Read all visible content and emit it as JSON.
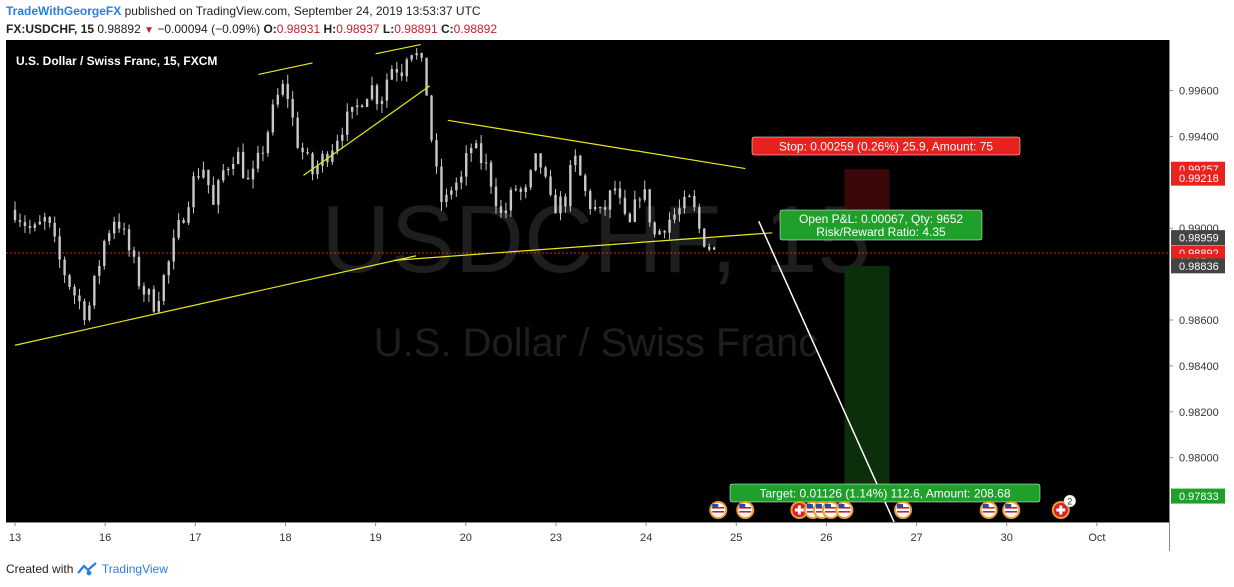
{
  "header": {
    "author": "TradeWithGeorgeFX",
    "published_text": "published on TradingView.com, September 24, 2019 13:53:37 UTC",
    "symbol_interval": "FX:USDCHF, 15",
    "last": "0.98892",
    "change": "−0.00094 (−0.09%)",
    "o_label": "O:",
    "o": "0.98931",
    "h_label": "H:",
    "h": "0.98937",
    "l_label": "L:",
    "l": "0.98891",
    "c_label": "C:",
    "c": "0.98892"
  },
  "footer": {
    "created_with": "Created with",
    "brand": "TradingView"
  },
  "colors": {
    "background": "#000000",
    "candle": "#c8c8c8",
    "trendline": "#e8e81c",
    "stop_zone": "#3a0808",
    "target_zone": "#0b2e0b",
    "stop_label": "#e8221e",
    "pnl_label": "#1ea02a",
    "target_label": "#1ea02a",
    "axis_bg": "#ffffff",
    "axis_text": "#333333",
    "last_price": "#e8221e"
  },
  "chart_data": {
    "type": "candlestick",
    "instrument_label": "U.S. Dollar / Swiss Franc, 15, FXCM",
    "watermark_symbol": "USDCHF, 15",
    "watermark_name": "U.S. Dollar / Swiss Franc",
    "x_ticks": [
      "13",
      "16",
      "17",
      "18",
      "19",
      "20",
      "23",
      "24",
      "25",
      "26",
      "27",
      "30",
      "Oct"
    ],
    "y_ticks": [
      0.996,
      0.994,
      0.99,
      0.986,
      0.984,
      0.982,
      0.98
    ],
    "y_tick_labels": [
      "0.99600",
      "0.99400",
      "0.99000",
      "0.98600",
      "0.98400",
      "0.98200",
      "0.98000"
    ],
    "ylim": [
      0.9772,
      0.9982
    ],
    "x_range_days": [
      -0.1,
      12.8
    ],
    "price_badges": [
      {
        "label": "0.99257",
        "value": 0.99257,
        "kind": "stop"
      },
      {
        "label": "0.99218",
        "value": 0.99218,
        "kind": "stop"
      },
      {
        "label": "0.98959",
        "value": 0.98959,
        "kind": "entry"
      },
      {
        "label": "0.98892",
        "value": 0.98892,
        "kind": "last"
      },
      {
        "label": "06:25",
        "value": 0.98855,
        "kind": "countdown"
      },
      {
        "label": "0.98836",
        "value": 0.98836,
        "kind": "entry"
      },
      {
        "label": "0.97833",
        "value": 0.97833,
        "kind": "target"
      }
    ],
    "last_price": 0.98892,
    "path_day": [
      0,
      0.2,
      0.35,
      0.5,
      0.65,
      0.8,
      1.0,
      1.12,
      1.25,
      1.4,
      1.55,
      1.7,
      1.8,
      2.0,
      2.1,
      2.2,
      2.3,
      2.45,
      2.6,
      2.75,
      2.9,
      3.0,
      3.12,
      3.3,
      3.5,
      3.65,
      3.75,
      3.85,
      3.95,
      4.05,
      4.12,
      4.2,
      4.28,
      4.36,
      4.42,
      4.5,
      4.55,
      4.65,
      4.75,
      4.85,
      4.95,
      5.05,
      5.15,
      5.25,
      5.4,
      5.55,
      5.65,
      5.8,
      5.95,
      6.1,
      6.2,
      6.35,
      6.5,
      6.65,
      6.8,
      6.95,
      7.1,
      7.2,
      7.35,
      7.5,
      7.6,
      7.7,
      7.8
    ],
    "path_price": [
      0.9908,
      0.9898,
      0.9904,
      0.9885,
      0.9872,
      0.9862,
      0.9896,
      0.9906,
      0.9892,
      0.9874,
      0.9867,
      0.9884,
      0.9898,
      0.9923,
      0.9927,
      0.9909,
      0.9924,
      0.9934,
      0.9918,
      0.9935,
      0.9956,
      0.9963,
      0.9939,
      0.9924,
      0.9935,
      0.9946,
      0.9949,
      0.9957,
      0.9962,
      0.9955,
      0.9965,
      0.9972,
      0.9968,
      0.9979,
      0.9978,
      0.9971,
      0.9965,
      0.9928,
      0.9908,
      0.9919,
      0.9921,
      0.9936,
      0.9931,
      0.9925,
      0.9904,
      0.9918,
      0.9913,
      0.9932,
      0.9909,
      0.9912,
      0.9931,
      0.9912,
      0.9905,
      0.9918,
      0.9898,
      0.9919,
      0.9896,
      0.9902,
      0.9907,
      0.9912,
      0.9898,
      0.9892,
      0.9889
    ],
    "trendlines": [
      {
        "d1": 0.0,
        "p1": 0.9849,
        "d2": 4.45,
        "p2": 0.9888
      },
      {
        "d1": 4.2,
        "p1": 0.9886,
        "d2": 8.4,
        "p2": 0.9898
      },
      {
        "d1": 4.8,
        "p1": 0.9947,
        "d2": 8.1,
        "p2": 0.9926
      },
      {
        "d1": 3.2,
        "p1": 0.9923,
        "d2": 4.6,
        "p2": 0.9962
      },
      {
        "d1": 2.7,
        "p1": 0.9967,
        "d2": 3.3,
        "p2": 0.9972
      },
      {
        "d1": 4.0,
        "p1": 0.9976,
        "d2": 4.5,
        "p2": 0.998
      }
    ],
    "forecast_line": {
      "d1": 8.25,
      "p1": 0.9903,
      "d2": 9.75,
      "p2": 0.9772
    },
    "position": {
      "d1": 9.2,
      "d2": 9.7,
      "stop_top": 0.99257,
      "stop_bottom": 0.98959,
      "target_top": 0.98836,
      "target_bottom": 0.97833
    },
    "annotations": {
      "stop": "Stop: 0.00259 (0.26%) 25.9, Amount: 75",
      "open_pnl": "Open P&L: 0.00067, Qty: 9652",
      "risk_reward": "Risk/Reward Ratio: 4.35",
      "target": "Target: 0.01126 (1.14%) 112.6, Amount: 208.68"
    },
    "event_icons": [
      {
        "day": 7.8,
        "type": "us"
      },
      {
        "day": 8.1,
        "type": "us"
      },
      {
        "day": 8.7,
        "type": "ch"
      },
      {
        "day": 8.85,
        "type": "us"
      },
      {
        "day": 8.95,
        "type": "us"
      },
      {
        "day": 9.05,
        "type": "us"
      },
      {
        "day": 9.2,
        "type": "us"
      },
      {
        "day": 9.85,
        "type": "us"
      },
      {
        "day": 10.8,
        "type": "us"
      },
      {
        "day": 11.05,
        "type": "us"
      },
      {
        "day": 11.6,
        "type": "ch",
        "count": "2"
      }
    ]
  }
}
